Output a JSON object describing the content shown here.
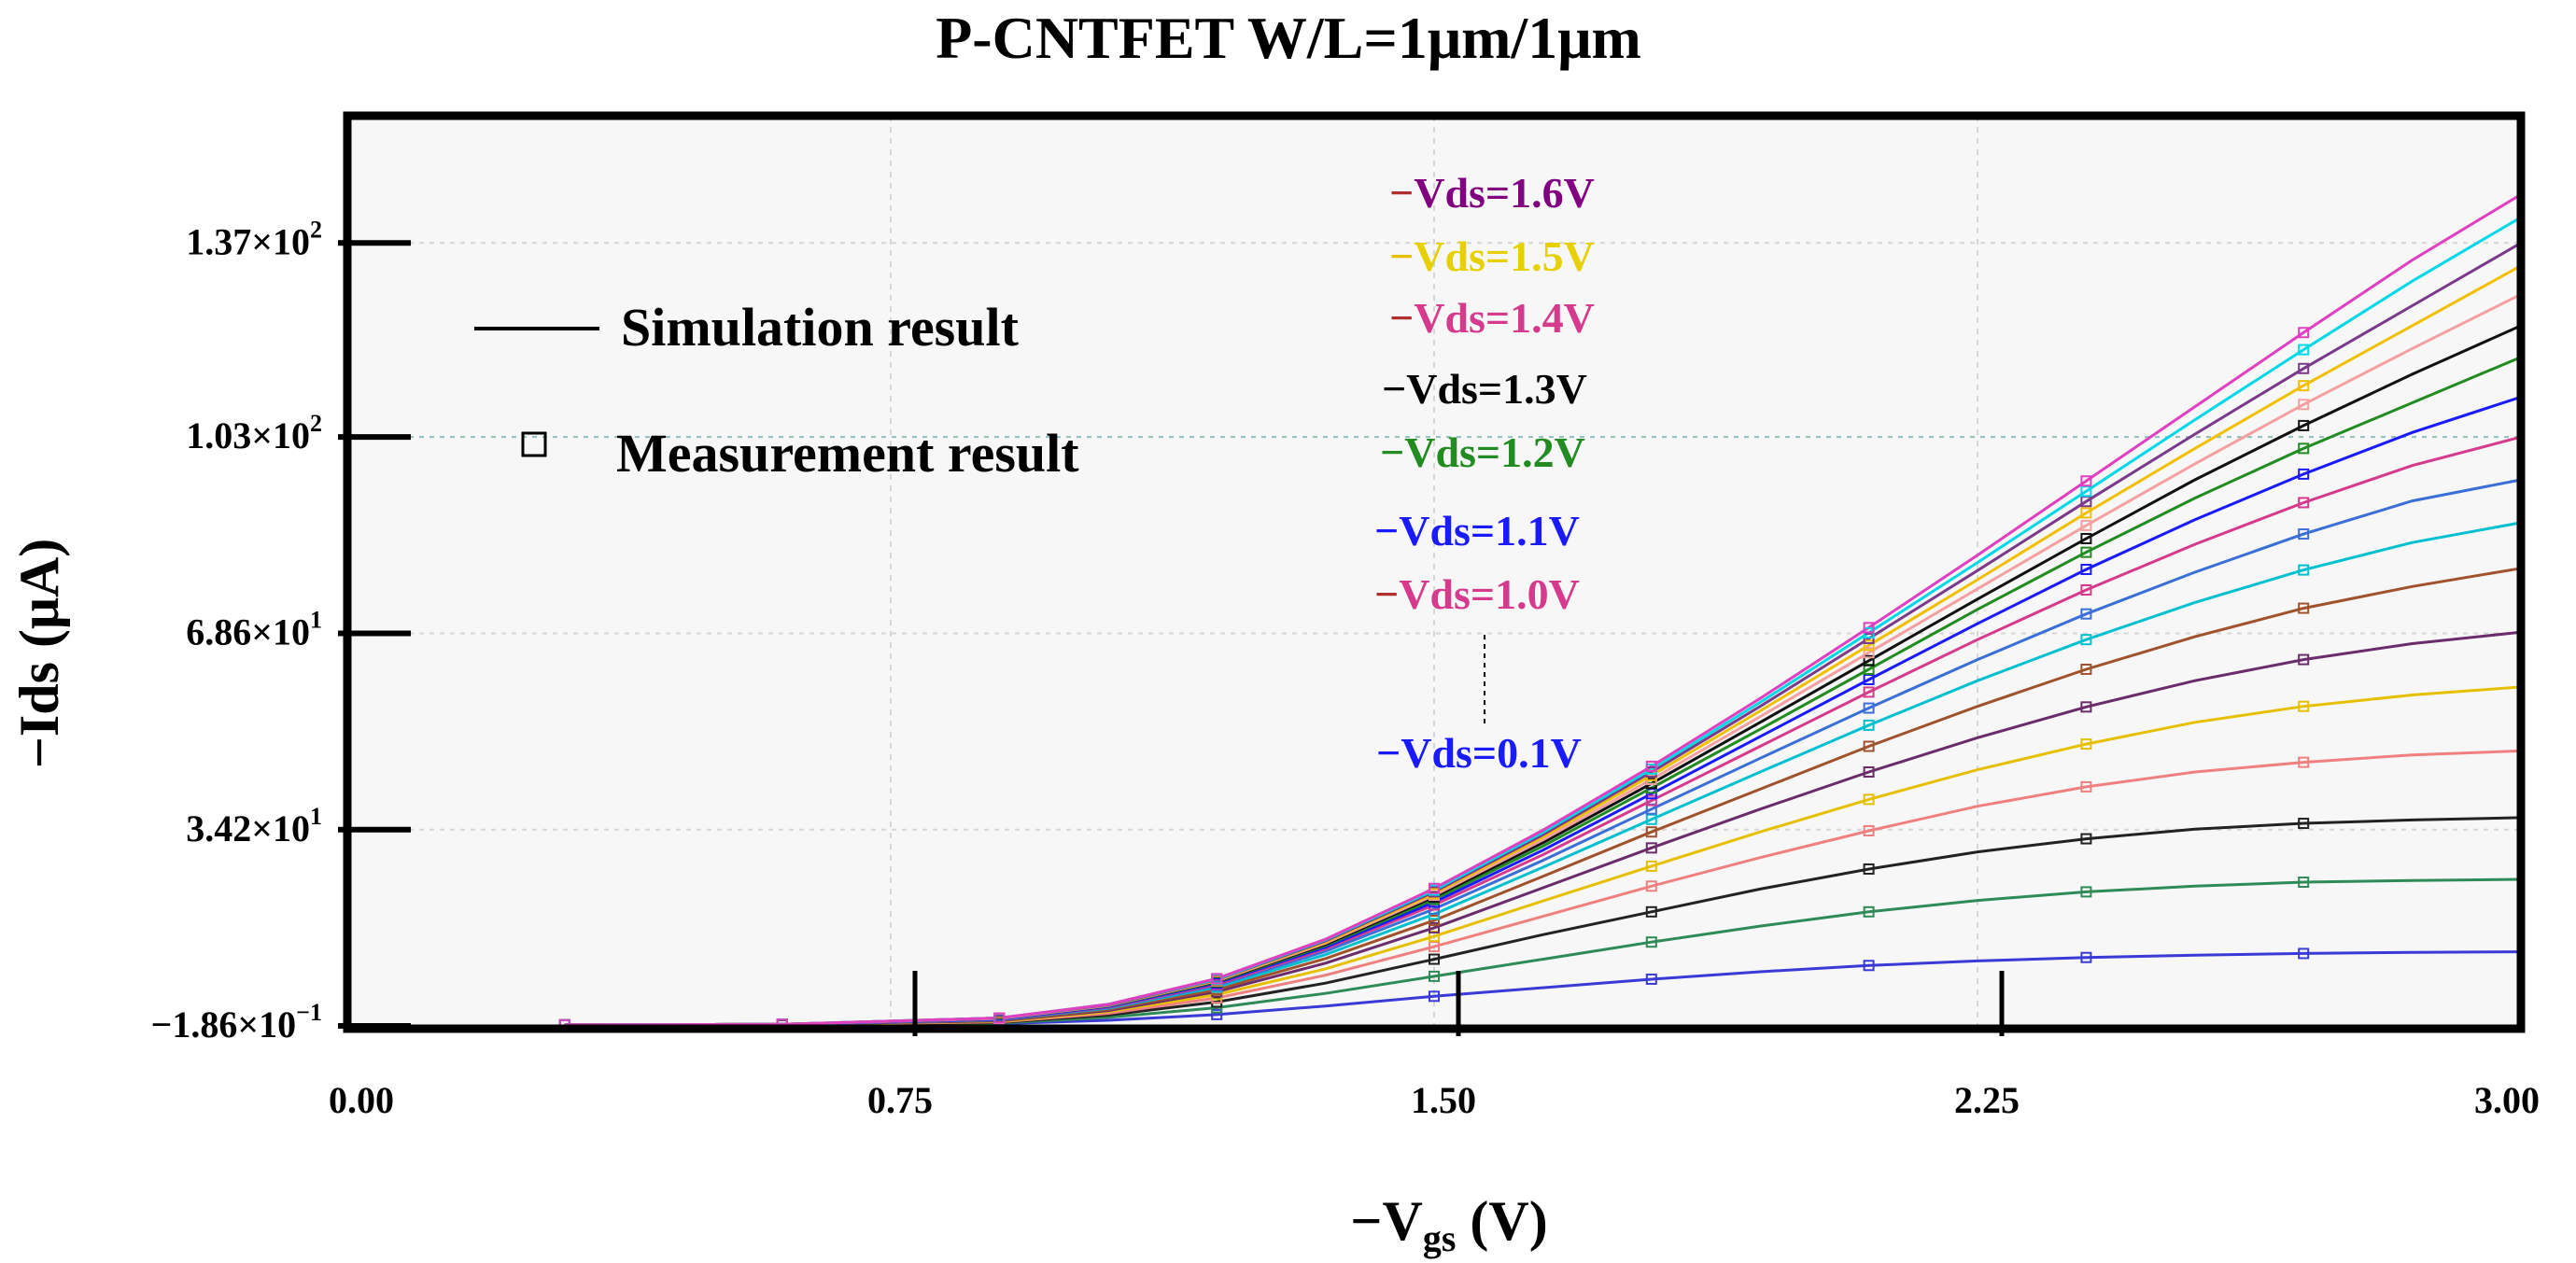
{
  "chart_data": {
    "type": "line",
    "title": "P-CNTFET  W/L=1μm/1μm",
    "xlabel_main": "−V",
    "xlabel_sub": "gs",
    "xlabel_unit": " (V)",
    "ylabel": "−Ids (μA)",
    "xlim": [
      0,
      3
    ],
    "ylim": [
      -0.186,
      157
    ],
    "x_ticks": [
      {
        "value": 0.0,
        "label": "0.00"
      },
      {
        "value": 0.75,
        "label": "0.75"
      },
      {
        "value": 1.5,
        "label": "1.50"
      },
      {
        "value": 2.25,
        "label": "2.25"
      },
      {
        "value": 3.0,
        "label": "3.00"
      }
    ],
    "y_ticks": [
      {
        "value": -0.186,
        "mant": "−1.86×10",
        "exp": "−1"
      },
      {
        "value": 34.2,
        "mant": "3.42×10",
        "exp": "1"
      },
      {
        "value": 68.6,
        "mant": "6.86×10",
        "exp": "1"
      },
      {
        "value": 103,
        "mant": "1.03×10",
        "exp": "2"
      },
      {
        "value": 137,
        "mant": "1.37×10",
        "exp": "2"
      }
    ],
    "grid": true,
    "legend": {
      "simulation": "Simulation result",
      "measurement": "Measurement result",
      "placement": "top-left"
    },
    "vds_labels": [
      {
        "text": "−Vds=1.6V",
        "dash_color": "#b03030",
        "color": "#800080"
      },
      {
        "text": "−Vds=1.5V",
        "dash_color": "#e6c000",
        "color": "#e6d000"
      },
      {
        "text": "−Vds=1.4V",
        "dash_color": "#b03030",
        "color": "#d63a8c"
      },
      {
        "text": "−Vds=1.3V",
        "dash_color": "#000000",
        "color": "#000000"
      },
      {
        "text": "−Vds=1.2V",
        "dash_color": "#228b22",
        "color": "#228b22"
      },
      {
        "text": "−Vds=1.1V",
        "dash_color": "#1a1aff",
        "color": "#1a1aff"
      },
      {
        "text": "−Vds=1.0V",
        "dash_color": "#b03030",
        "color": "#d63a8c"
      },
      {
        "text": "−Vds=0.1V",
        "dash_color": "#1a1aff",
        "color": "#1a1aff"
      }
    ],
    "meas_x": [
      0.3,
      0.6,
      0.9,
      1.2,
      1.5,
      1.8,
      2.1,
      2.4,
      2.7
    ],
    "series": [
      {
        "vds": 0.1,
        "color": "#3a3ad6",
        "x": [
          0.3,
          0.6,
          0.9,
          1.05,
          1.2,
          1.35,
          1.5,
          1.65,
          1.8,
          1.95,
          2.1,
          2.25,
          2.4,
          2.55,
          2.7,
          2.85,
          3.0
        ],
        "y": [
          0,
          0,
          0.2,
          0.8,
          1.8,
          3.3,
          5,
          6.5,
          8,
          9.3,
          10.4,
          11.2,
          11.8,
          12.2,
          12.5,
          12.7,
          12.8
        ]
      },
      {
        "vds": 0.2,
        "color": "#2e8b57",
        "x": [
          0.3,
          0.6,
          0.9,
          1.05,
          1.2,
          1.35,
          1.5,
          1.65,
          1.8,
          1.95,
          2.1,
          2.25,
          2.4,
          2.55,
          2.7,
          2.85,
          3.0
        ],
        "y": [
          0,
          0,
          0.3,
          1.3,
          3,
          5.5,
          8.5,
          11.5,
          14.5,
          17.3,
          19.8,
          21.8,
          23.3,
          24.3,
          25,
          25.3,
          25.5
        ]
      },
      {
        "vds": 0.3,
        "color": "#222222",
        "x": [
          0.3,
          0.6,
          0.9,
          1.05,
          1.2,
          1.35,
          1.5,
          1.65,
          1.8,
          1.95,
          2.1,
          2.25,
          2.4,
          2.55,
          2.7,
          2.85,
          3.0
        ],
        "y": [
          0,
          0,
          0.4,
          1.7,
          4,
          7.3,
          11.5,
          15.8,
          19.8,
          23.8,
          27.3,
          30.3,
          32.6,
          34.3,
          35.3,
          35.9,
          36.3
        ]
      },
      {
        "vds": 0.4,
        "color": "#f08080",
        "x": [
          0.3,
          0.6,
          0.9,
          1.05,
          1.2,
          1.35,
          1.5,
          1.65,
          1.8,
          1.95,
          2.1,
          2.25,
          2.4,
          2.55,
          2.7,
          2.85,
          3.0
        ],
        "y": [
          0,
          0.1,
          0.5,
          2,
          4.7,
          8.7,
          13.7,
          19,
          24.3,
          29.3,
          34,
          38.3,
          41.7,
          44.3,
          46,
          47.3,
          48
        ]
      },
      {
        "vds": 0.5,
        "color": "#e6c000",
        "x": [
          0.3,
          0.6,
          0.9,
          1.05,
          1.2,
          1.35,
          1.5,
          1.65,
          1.8,
          1.95,
          2.1,
          2.25,
          2.4,
          2.55,
          2.7,
          2.85,
          3.0
        ],
        "y": [
          0,
          0.1,
          0.6,
          2.3,
          5.3,
          9.8,
          15.5,
          21.7,
          27.8,
          33.8,
          39.5,
          44.7,
          49.2,
          53,
          55.8,
          57.8,
          59.2
        ]
      },
      {
        "vds": 0.6,
        "color": "#6a2c6a",
        "x": [
          0.3,
          0.6,
          0.9,
          1.05,
          1.2,
          1.35,
          1.5,
          1.65,
          1.8,
          1.95,
          2.1,
          2.25,
          2.4,
          2.55,
          2.7,
          2.85,
          3.0
        ],
        "y": [
          0,
          0.1,
          0.7,
          2.5,
          5.8,
          10.8,
          17,
          24,
          31,
          37.8,
          44.3,
          50.3,
          55.7,
          60.3,
          64,
          66.8,
          68.8
        ]
      },
      {
        "vds": 0.7,
        "color": "#a0522d",
        "x": [
          0.3,
          0.6,
          0.9,
          1.05,
          1.2,
          1.35,
          1.5,
          1.65,
          1.8,
          1.95,
          2.1,
          2.25,
          2.4,
          2.55,
          2.7,
          2.85,
          3.0
        ],
        "y": [
          0,
          0.1,
          0.8,
          2.7,
          6.2,
          11.6,
          18.3,
          26,
          33.8,
          41.3,
          48.8,
          55.8,
          62.3,
          68,
          73,
          76.8,
          80
        ]
      },
      {
        "vds": 0.8,
        "color": "#00c0d0",
        "x": [
          0.3,
          0.6,
          0.9,
          1.05,
          1.2,
          1.35,
          1.5,
          1.65,
          1.8,
          1.95,
          2.1,
          2.25,
          2.4,
          2.55,
          2.7,
          2.85,
          3.0
        ],
        "y": [
          0,
          0.1,
          0.9,
          2.9,
          6.6,
          12.3,
          19.4,
          27.6,
          36,
          44.3,
          52.5,
          60.3,
          67.5,
          74,
          79.7,
          84.5,
          88
        ]
      },
      {
        "vds": 0.9,
        "color": "#3a6fd8",
        "x": [
          0.3,
          0.6,
          0.9,
          1.05,
          1.2,
          1.35,
          1.5,
          1.65,
          1.8,
          1.95,
          2.1,
          2.25,
          2.4,
          2.55,
          2.7,
          2.85,
          3.0
        ],
        "y": [
          0,
          0.1,
          0.9,
          3,
          6.9,
          12.9,
          20.3,
          28.8,
          37.8,
          46.7,
          55.5,
          64,
          72,
          79.3,
          86,
          91.8,
          95.5
        ]
      },
      {
        "vds": 1.0,
        "color": "#d63a8c",
        "x": [
          0.3,
          0.6,
          0.9,
          1.05,
          1.2,
          1.35,
          1.5,
          1.65,
          1.8,
          1.95,
          2.1,
          2.25,
          2.4,
          2.55,
          2.7,
          2.85,
          3.0
        ],
        "y": [
          0,
          0.1,
          1,
          3.1,
          7.1,
          13.3,
          21,
          29.8,
          39.3,
          48.8,
          58.3,
          67.5,
          76.2,
          84.2,
          91.5,
          98,
          103
        ]
      },
      {
        "vds": 1.1,
        "color": "#1a1aff",
        "x": [
          0.3,
          0.6,
          0.9,
          1.05,
          1.2,
          1.35,
          1.5,
          1.65,
          1.8,
          1.95,
          2.1,
          2.25,
          2.4,
          2.55,
          2.7,
          2.85,
          3.0
        ],
        "y": [
          0,
          0.1,
          1,
          3.2,
          7.3,
          13.6,
          21.5,
          30.6,
          40.5,
          50.5,
          60.5,
          70.3,
          79.8,
          88.5,
          96.5,
          103.8,
          110
        ]
      },
      {
        "vds": 1.2,
        "color": "#228b22",
        "x": [
          0.3,
          0.6,
          0.9,
          1.05,
          1.2,
          1.35,
          1.5,
          1.65,
          1.8,
          1.95,
          2.1,
          2.25,
          2.4,
          2.55,
          2.7,
          2.85,
          3.0
        ],
        "y": [
          0,
          0.1,
          1.1,
          3.3,
          7.5,
          13.9,
          22,
          31.3,
          41.5,
          51.8,
          62.3,
          72.8,
          82.8,
          92.3,
          101,
          109,
          117
        ]
      },
      {
        "vds": 1.3,
        "color": "#111111",
        "x": [
          0.3,
          0.6,
          0.9,
          1.05,
          1.2,
          1.35,
          1.5,
          1.65,
          1.8,
          1.95,
          2.1,
          2.25,
          2.4,
          2.55,
          2.7,
          2.85,
          3.0
        ],
        "y": [
          0,
          0.1,
          1.1,
          3.4,
          7.6,
          14.1,
          22.4,
          31.9,
          42.3,
          53,
          63.8,
          74.6,
          85.2,
          95.5,
          105,
          114,
          122.5
        ]
      },
      {
        "vds": 1.4,
        "color": "#f4a0a0",
        "x": [
          0.3,
          0.6,
          0.9,
          1.05,
          1.2,
          1.35,
          1.5,
          1.65,
          1.8,
          1.95,
          2.1,
          2.25,
          2.4,
          2.55,
          2.7,
          2.85,
          3.0
        ],
        "y": [
          0,
          0.1,
          1.1,
          3.4,
          7.7,
          14.3,
          22.7,
          32.4,
          43,
          54,
          65.2,
          76.4,
          87.5,
          98.3,
          108.7,
          118.5,
          128
        ]
      },
      {
        "vds": 1.5,
        "color": "#f0c000",
        "x": [
          0.3,
          0.6,
          0.9,
          1.05,
          1.2,
          1.35,
          1.5,
          1.65,
          1.8,
          1.95,
          2.1,
          2.25,
          2.4,
          2.55,
          2.7,
          2.85,
          3.0
        ],
        "y": [
          0,
          0.1,
          1.2,
          3.5,
          7.8,
          14.5,
          23,
          32.9,
          43.7,
          55,
          66.5,
          78,
          89.7,
          101,
          112,
          122.5,
          133
        ]
      },
      {
        "vds": 1.6,
        "color": "#7a3a8a",
        "x": [
          0.3,
          0.6,
          0.9,
          1.05,
          1.2,
          1.35,
          1.5,
          1.65,
          1.8,
          1.95,
          2.1,
          2.25,
          2.4,
          2.55,
          2.7,
          2.85,
          3.0
        ],
        "y": [
          0,
          0.1,
          1.2,
          3.5,
          7.9,
          14.7,
          23.3,
          33.3,
          44.3,
          55.8,
          67.7,
          79.6,
          91.7,
          103.5,
          115,
          126,
          137
        ]
      },
      {
        "vds": 1.7,
        "color": "#00d8e8",
        "x": [
          0.3,
          0.6,
          0.9,
          1.05,
          1.2,
          1.35,
          1.5,
          1.65,
          1.8,
          1.95,
          2.1,
          2.25,
          2.4,
          2.55,
          2.7,
          2.85,
          3.0
        ],
        "y": [
          0,
          0.1,
          1.2,
          3.6,
          8,
          14.9,
          23.6,
          33.7,
          44.8,
          56.5,
          68.7,
          81,
          93.5,
          106,
          118.3,
          130.3,
          141.5
        ]
      },
      {
        "vds": 1.8,
        "color": "#e040c0",
        "x": [
          0.3,
          0.6,
          0.9,
          1.05,
          1.2,
          1.35,
          1.5,
          1.65,
          1.8,
          1.95,
          2.1,
          2.25,
          2.4,
          2.55,
          2.7,
          2.85,
          3.0
        ],
        "y": [
          0,
          0.1,
          1.2,
          3.6,
          8.1,
          15,
          23.9,
          34.1,
          45.3,
          57.2,
          69.6,
          82.3,
          95.3,
          108.3,
          121.3,
          134,
          145.5
        ]
      }
    ]
  }
}
